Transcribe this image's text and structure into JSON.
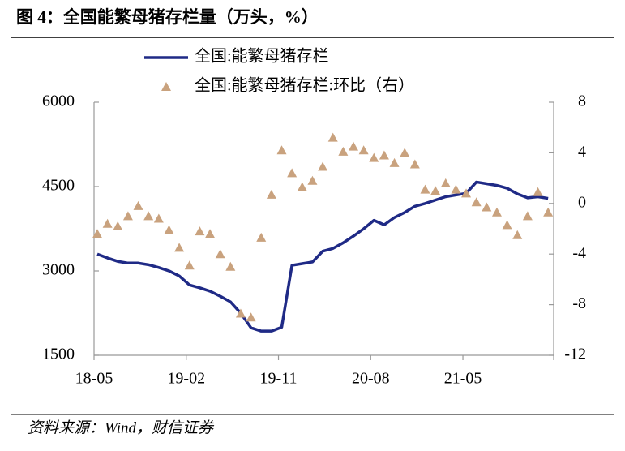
{
  "chart_data": {
    "type": "line",
    "title": "图 4：全国能繁母猪存栏量（万头，%）",
    "source": "资料来源：Wind，财信证券",
    "categories": [
      "18-05",
      null,
      null,
      null,
      null,
      null,
      null,
      null,
      null,
      "19-02",
      null,
      null,
      null,
      null,
      null,
      null,
      null,
      null,
      "19-11",
      null,
      null,
      null,
      null,
      null,
      null,
      null,
      null,
      "20-08",
      null,
      null,
      null,
      null,
      null,
      null,
      null,
      null,
      "21-05",
      null,
      null,
      null,
      null,
      null,
      null,
      null,
      null
    ],
    "series": [
      {
        "name": "全国:能繁母猪存栏",
        "color": "#1f2a86",
        "type": "line",
        "values": [
          3300,
          3230,
          3170,
          3140,
          3140,
          3110,
          3060,
          3000,
          2910,
          2750,
          2700,
          2640,
          2550,
          2450,
          2250,
          1990,
          1930,
          1930,
          2000,
          3100,
          3130,
          3160,
          3350,
          3400,
          3500,
          3620,
          3750,
          3900,
          3820,
          3950,
          4040,
          4150,
          4200,
          4260,
          4320,
          4350,
          4380,
          4580,
          4550,
          4520,
          4470,
          4370,
          4300,
          4320,
          4290
        ]
      },
      {
        "name": "全国:能繁母猪存栏:环比（右）",
        "color": "#c9a27e",
        "type": "scatter",
        "axis": "y2",
        "values": [
          -2.4,
          -1.6,
          -1.8,
          -1.0,
          -0.2,
          -1.0,
          -1.2,
          -2.1,
          -3.5,
          -4.9,
          -2.2,
          -2.4,
          -4.0,
          -5.0,
          -8.7,
          -9.0,
          -2.7,
          0.7,
          4.2,
          2.4,
          1.3,
          1.8,
          2.9,
          5.2,
          4.1,
          4.5,
          4.2,
          3.6,
          3.8,
          3.2,
          4.0,
          3.1,
          1.1,
          1.0,
          1.6,
          1.1,
          0.8,
          0.1,
          -0.3,
          -0.7,
          -1.7,
          -2.5,
          -1.0,
          0.9,
          -0.7
        ]
      }
    ],
    "ylim": [
      1500,
      6000
    ],
    "yticks": [
      1500,
      3000,
      4500,
      6000
    ],
    "y2lim": [
      -12,
      8
    ],
    "y2ticks": [
      -12,
      -8,
      -4,
      0,
      4,
      8
    ]
  }
}
